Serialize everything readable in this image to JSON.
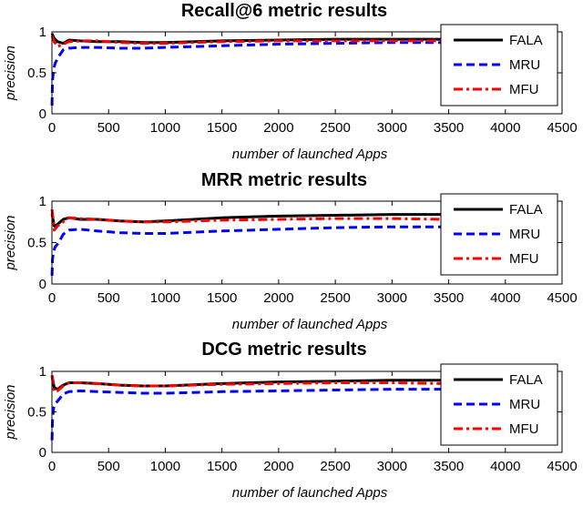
{
  "chart_data": [
    {
      "type": "line",
      "title": "Recall@6 metric results",
      "xlabel": "number of launched Apps",
      "ylabel": "precision",
      "xlim": [
        0,
        4500
      ],
      "ylim": [
        0,
        1
      ],
      "xticks": [
        "0",
        "500",
        "1000",
        "1500",
        "2000",
        "2500",
        "3000",
        "3500",
        "4000",
        "4500"
      ],
      "yticks": [
        "0",
        "0.5",
        "1"
      ],
      "legend_position": "top-right",
      "series": [
        {
          "name": "FALA",
          "color": "#000000",
          "style": "solid",
          "x": [
            1,
            20,
            50,
            100,
            150,
            250,
            400,
            600,
            800,
            1000,
            1500,
            2000,
            2500,
            3000,
            3450
          ],
          "y": [
            0.98,
            0.92,
            0.88,
            0.86,
            0.9,
            0.89,
            0.88,
            0.88,
            0.87,
            0.87,
            0.89,
            0.9,
            0.91,
            0.91,
            0.91
          ]
        },
        {
          "name": "MRU",
          "color": "#0000ff",
          "style": "dashed",
          "x": [
            1,
            5,
            15,
            30,
            60,
            100,
            150,
            250,
            400,
            600,
            800,
            1000,
            1500,
            2000,
            2500,
            3000,
            3450
          ],
          "y": [
            0.1,
            0.4,
            0.55,
            0.62,
            0.7,
            0.78,
            0.8,
            0.81,
            0.81,
            0.8,
            0.8,
            0.81,
            0.83,
            0.85,
            0.86,
            0.87,
            0.87
          ]
        },
        {
          "name": "MFU",
          "color": "#ff0000",
          "style": "dashdot",
          "x": [
            1,
            20,
            50,
            100,
            150,
            250,
            400,
            600,
            800,
            1000,
            1500,
            2000,
            2500,
            3000,
            3450
          ],
          "y": [
            0.95,
            0.88,
            0.82,
            0.85,
            0.88,
            0.89,
            0.89,
            0.87,
            0.86,
            0.86,
            0.88,
            0.89,
            0.89,
            0.89,
            0.89
          ]
        }
      ]
    },
    {
      "type": "line",
      "title": "MRR metric results",
      "xlabel": "number of launched Apps",
      "ylabel": "precision",
      "xlim": [
        0,
        4500
      ],
      "ylim": [
        0,
        1
      ],
      "xticks": [
        "0",
        "500",
        "1000",
        "1500",
        "2000",
        "2500",
        "3000",
        "3500",
        "4000",
        "4500"
      ],
      "yticks": [
        "0",
        "0.5",
        "1"
      ],
      "legend_position": "top-right",
      "series": [
        {
          "name": "FALA",
          "color": "#000000",
          "style": "solid",
          "x": [
            1,
            20,
            50,
            100,
            150,
            250,
            400,
            600,
            800,
            1000,
            1500,
            2000,
            2500,
            3000,
            3450
          ],
          "y": [
            0.85,
            0.7,
            0.72,
            0.78,
            0.8,
            0.78,
            0.78,
            0.76,
            0.75,
            0.76,
            0.8,
            0.82,
            0.83,
            0.84,
            0.84
          ]
        },
        {
          "name": "MRU",
          "color": "#0000ff",
          "style": "dashed",
          "x": [
            1,
            5,
            15,
            30,
            60,
            100,
            150,
            250,
            400,
            600,
            800,
            1000,
            1500,
            2000,
            2500,
            3000,
            3450
          ],
          "y": [
            0.1,
            0.3,
            0.4,
            0.45,
            0.5,
            0.6,
            0.65,
            0.66,
            0.64,
            0.62,
            0.61,
            0.61,
            0.64,
            0.66,
            0.68,
            0.69,
            0.69
          ]
        },
        {
          "name": "MFU",
          "color": "#ff0000",
          "style": "dashdot",
          "x": [
            1,
            20,
            50,
            100,
            150,
            250,
            400,
            600,
            800,
            1000,
            1500,
            2000,
            2500,
            3000,
            3450
          ],
          "y": [
            0.9,
            0.65,
            0.7,
            0.75,
            0.8,
            0.79,
            0.78,
            0.76,
            0.75,
            0.75,
            0.77,
            0.78,
            0.79,
            0.79,
            0.78
          ]
        }
      ]
    },
    {
      "type": "line",
      "title": "DCG metric results",
      "xlabel": "number of launched Apps",
      "ylabel": "precision",
      "xlim": [
        0,
        4500
      ],
      "ylim": [
        0,
        1
      ],
      "xticks": [
        "0",
        "500",
        "1000",
        "1500",
        "2000",
        "2500",
        "3000",
        "3500",
        "4000",
        "4500"
      ],
      "yticks": [
        "0",
        "0.5",
        "1"
      ],
      "legend_position": "top-right",
      "series": [
        {
          "name": "FALA",
          "color": "#000000",
          "style": "solid",
          "x": [
            1,
            20,
            50,
            100,
            150,
            250,
            400,
            600,
            800,
            1000,
            1500,
            2000,
            2500,
            3000,
            3450
          ],
          "y": [
            0.95,
            0.8,
            0.78,
            0.83,
            0.86,
            0.86,
            0.85,
            0.83,
            0.82,
            0.82,
            0.85,
            0.87,
            0.88,
            0.89,
            0.89
          ]
        },
        {
          "name": "MRU",
          "color": "#0000ff",
          "style": "dashed",
          "x": [
            1,
            5,
            15,
            30,
            60,
            100,
            150,
            250,
            400,
            600,
            800,
            1000,
            1500,
            2000,
            2500,
            3000,
            3450
          ],
          "y": [
            0.15,
            0.4,
            0.55,
            0.6,
            0.65,
            0.72,
            0.75,
            0.76,
            0.75,
            0.74,
            0.73,
            0.73,
            0.75,
            0.76,
            0.77,
            0.78,
            0.78
          ]
        },
        {
          "name": "MFU",
          "color": "#ff0000",
          "style": "dashdot",
          "x": [
            1,
            20,
            50,
            100,
            150,
            250,
            400,
            600,
            800,
            1000,
            1500,
            2000,
            2500,
            3000,
            3450
          ],
          "y": [
            0.95,
            0.75,
            0.76,
            0.82,
            0.86,
            0.86,
            0.85,
            0.83,
            0.82,
            0.82,
            0.84,
            0.85,
            0.86,
            0.86,
            0.85
          ]
        }
      ]
    }
  ]
}
